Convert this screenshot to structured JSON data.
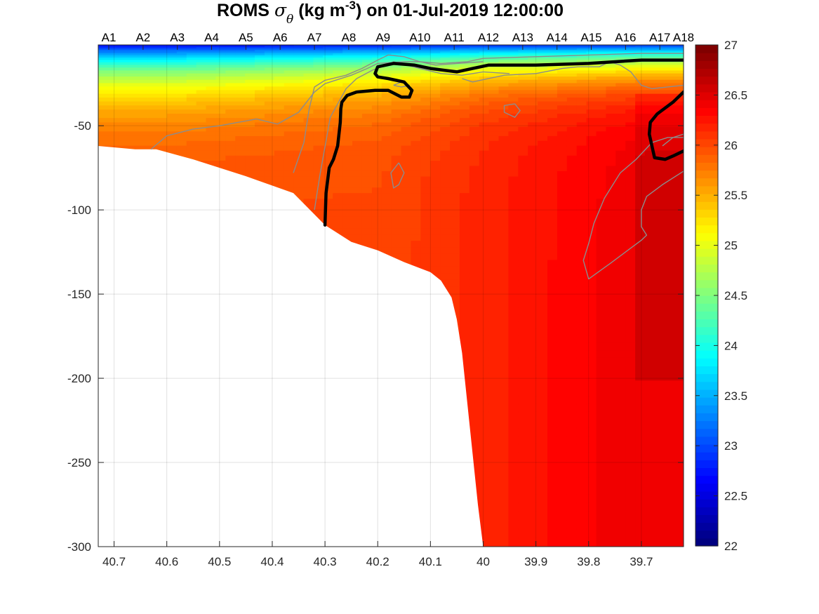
{
  "chart_data": {
    "type": "heatmap",
    "title": {
      "prefix": "ROMS ",
      "symbol": "σ",
      "subscript": "θ",
      "unit_open": " (kg m",
      "superscript": "-3",
      "suffix": ") on 01-Jul-2019 12:00:00"
    },
    "xlim": [
      39.62,
      40.73
    ],
    "xdir": "reverse",
    "ylim": [
      -300,
      -2
    ],
    "xticks": [
      40.7,
      40.6,
      40.5,
      40.4,
      40.3,
      40.2,
      40.1,
      40.0,
      39.9,
      39.8,
      39.7
    ],
    "xticklabels": [
      "40.7",
      "40.6",
      "40.5",
      "40.4",
      "40.3",
      "40.2",
      "40.1",
      "40",
      "39.9",
      "39.8",
      "39.7"
    ],
    "yticks": [
      -50,
      -100,
      -150,
      -200,
      -250,
      -300
    ],
    "yticklabels": [
      "-50",
      "-100",
      "-150",
      "-200",
      "-250",
      "-300"
    ],
    "grid": true,
    "stations": {
      "labels": [
        "A1",
        "A2",
        "A3",
        "A4",
        "A5",
        "A6",
        "A7",
        "A8",
        "A9",
        "A10",
        "A11",
        "A12",
        "A13",
        "A14",
        "A15",
        "A16",
        "A17",
        "A18"
      ],
      "lat": [
        40.71,
        40.645,
        40.58,
        40.515,
        40.45,
        40.385,
        40.32,
        40.255,
        40.19,
        40.12,
        40.055,
        39.99,
        39.925,
        39.86,
        39.795,
        39.73,
        39.665,
        39.62
      ]
    },
    "colorbar": {
      "range": [
        22,
        27
      ],
      "ticks": [
        22,
        22.5,
        23,
        23.5,
        24,
        24.5,
        25,
        25.5,
        26,
        26.5,
        27
      ],
      "ticklabels": [
        "22",
        "22.5",
        "23",
        "23.5",
        "24",
        "24.5",
        "25",
        "25.5",
        "26",
        "26.5",
        "27"
      ],
      "colormap": "jet",
      "levels": 64
    },
    "bottom": {
      "lat": [
        40.73,
        40.66,
        40.62,
        40.55,
        40.45,
        40.36,
        40.3,
        40.25,
        40.2,
        40.15,
        40.1,
        40.08,
        40.06,
        40.05,
        40.04,
        40.03,
        40.02,
        40.01,
        40.0
      ],
      "depth": [
        -62,
        -64,
        -64,
        -70,
        -80,
        -90,
        -109,
        -119,
        -124,
        -131,
        -137,
        -142,
        -152,
        -165,
        -185,
        -215,
        -245,
        -275,
        -300
      ]
    },
    "thick_contours": [
      {
        "lat": [
          40.3,
          40.298,
          40.292,
          40.284,
          40.276,
          40.271,
          40.27,
          40.268,
          40.258,
          40.24,
          40.205,
          40.18,
          40.155,
          40.14,
          40.135,
          40.15,
          40.18,
          40.2,
          40.205,
          40.2,
          40.17,
          40.13,
          40.1,
          40.05,
          40.02,
          39.99,
          39.9,
          39.8,
          39.7,
          39.62
        ],
        "depth": [
          -109,
          -90,
          -75,
          -70,
          -62,
          -48,
          -40,
          -36,
          -32,
          -30,
          -29,
          -29,
          -33,
          -33,
          -29,
          -24,
          -22,
          -21,
          -19,
          -15,
          -13,
          -14,
          -16,
          -18,
          -16,
          -14,
          -14,
          -13,
          -11,
          -11
        ]
      },
      {
        "lat": [
          39.62,
          39.64,
          39.67,
          39.683,
          39.685,
          39.675,
          39.655,
          39.64,
          39.62
        ],
        "depth": [
          -30,
          -36,
          -43,
          -48,
          -55,
          -69,
          -70,
          -68,
          -65
        ]
      }
    ],
    "thin_contours": [
      {
        "lat": [
          40.63,
          40.6,
          40.55,
          40.5,
          40.43,
          40.39,
          40.35,
          40.32,
          40.3,
          40.25,
          40.22,
          40.2,
          40.15,
          40.12,
          40.08,
          40.03,
          40.0,
          39.9,
          39.8,
          39.7,
          39.62
        ],
        "depth": [
          -64,
          -56,
          -52,
          -50,
          -46,
          -49,
          -42,
          -30,
          -25,
          -20,
          -16,
          -13,
          -12,
          -12,
          -13,
          -12,
          -10,
          -9,
          -8,
          -7,
          -7
        ]
      },
      {
        "lat": [
          40.36,
          40.34,
          40.33,
          40.32,
          40.3,
          40.26,
          40.23,
          40.2,
          40.18,
          40.15,
          40.12,
          40.09,
          40.05,
          40.0
        ],
        "depth": [
          -78,
          -60,
          -40,
          -27,
          -23,
          -20,
          -16,
          -11,
          -8,
          -9,
          -12,
          -14,
          -13,
          -12
        ]
      },
      {
        "lat": [
          40.32,
          40.31,
          40.29,
          40.26,
          40.24,
          40.21,
          40.17,
          40.12,
          40.08,
          40.04,
          40.0,
          39.95
        ],
        "depth": [
          -100,
          -80,
          -45,
          -28,
          -22,
          -17,
          -12,
          -16,
          -19,
          -20,
          -18,
          -19
        ]
      },
      {
        "lat": [
          40.04,
          40.02,
          39.99,
          39.96,
          39.9,
          39.85,
          39.82,
          39.78,
          39.76,
          39.74,
          39.72,
          39.7,
          39.68,
          39.65,
          39.62
        ],
        "depth": [
          -22,
          -24,
          -22,
          -20,
          -19,
          -16,
          -15,
          -15,
          -12,
          -14,
          -18,
          -26,
          -28,
          -27,
          -26
        ]
      },
      {
        "lat": [
          39.62,
          39.66,
          39.69,
          39.7,
          39.7,
          39.69,
          39.7,
          39.73,
          39.76,
          39.8,
          39.81,
          39.8,
          39.79,
          39.77,
          39.74,
          39.71,
          39.68,
          39.65,
          39.62
        ],
        "depth": [
          -77,
          -85,
          -92,
          -100,
          -110,
          -115,
          -118,
          -125,
          -132,
          -141,
          -130,
          -120,
          -108,
          -93,
          -78,
          -70,
          -60,
          -57,
          -57
        ]
      },
      {
        "lat": [
          39.94,
          39.96,
          39.96,
          39.94,
          39.93,
          39.94
        ],
        "depth": [
          -37,
          -38,
          -42,
          -45,
          -41,
          -37
        ]
      },
      {
        "lat": [
          40.16,
          40.175,
          40.17,
          40.16,
          40.15,
          40.16
        ],
        "depth": [
          -72,
          -78,
          -87,
          -85,
          -78,
          -72
        ]
      },
      {
        "lat": [
          40.17,
          40.155,
          40.14,
          40.155,
          40.17
        ],
        "depth": [
          -26,
          -24,
          -26,
          -27,
          -26
        ]
      },
      {
        "lat": [
          39.66,
          39.64,
          39.62
        ],
        "depth": [
          -62,
          -57,
          -55
        ]
      }
    ]
  }
}
